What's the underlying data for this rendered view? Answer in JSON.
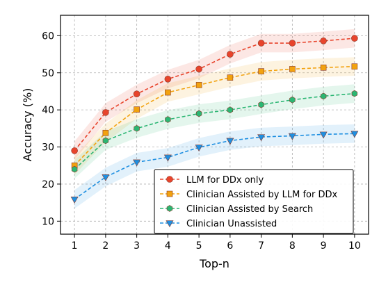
{
  "chart_data": {
    "type": "line",
    "title": "",
    "xlabel": "Top-n",
    "ylabel": "Accuracy (%)",
    "x": [
      1,
      2,
      3,
      4,
      5,
      6,
      7,
      8,
      9,
      10
    ],
    "xlim": [
      0.55,
      10.45
    ],
    "ylim": [
      6.5,
      65.5
    ],
    "yticks": [
      10,
      20,
      30,
      40,
      50,
      60
    ],
    "grid": true,
    "legend_position": "lower-right",
    "series": [
      {
        "name": "LLM for DDx only",
        "color": "#e8442c",
        "marker": "circle",
        "values": [
          29.0,
          39.3,
          44.3,
          48.3,
          51.0,
          55.0,
          58.0,
          58.0,
          58.6,
          59.3
        ],
        "band": 2.5
      },
      {
        "name": "Clinician Assisted by LLM for DDx",
        "color": "#f2a20f",
        "marker": "square",
        "values": [
          25.0,
          33.8,
          40.1,
          44.7,
          46.7,
          48.7,
          50.4,
          51.0,
          51.4,
          51.7
        ],
        "band": 2.5
      },
      {
        "name": "Clinician Assisted by Search",
        "color": "#2bb673",
        "marker": "hexagon",
        "values": [
          24.0,
          31.7,
          35.0,
          37.4,
          39.0,
          40.0,
          41.4,
          42.7,
          43.7,
          44.4
        ],
        "band": 2.5
      },
      {
        "name": "Clinician Unassisted",
        "color": "#1e8fe1",
        "marker": "triangle-down",
        "values": [
          15.9,
          21.9,
          25.9,
          27.2,
          29.9,
          31.7,
          32.7,
          33.0,
          33.4,
          33.6
        ],
        "band": 2.5
      }
    ]
  }
}
